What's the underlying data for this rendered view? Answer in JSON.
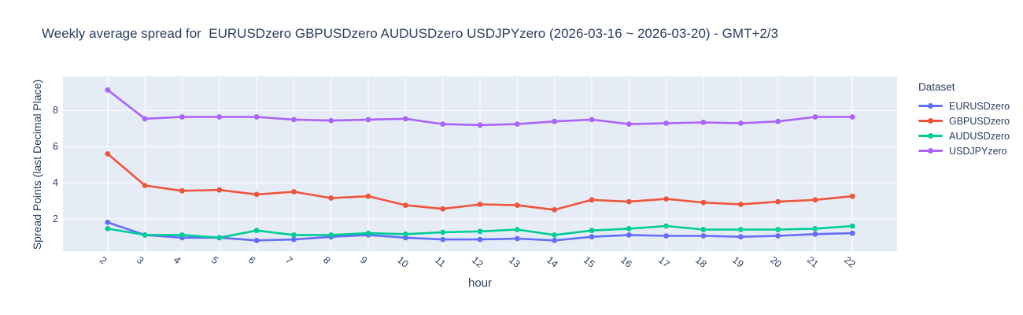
{
  "chart_data": {
    "type": "line",
    "title": "Weekly average spread for  EURUSDzero GBPUSDzero AUDUSDzero USDJPYzero (2026-03-16 ~ 2026-03-20) - GMT+2/3",
    "xlabel": "hour",
    "ylabel": "Spread Points (last Decimal Place)",
    "legend_title": "Dataset",
    "legend_position": "right",
    "grid": true,
    "x": [
      2,
      3,
      4,
      5,
      6,
      7,
      8,
      9,
      10,
      11,
      12,
      13,
      14,
      15,
      16,
      17,
      18,
      19,
      20,
      21,
      22
    ],
    "series": [
      {
        "name": "EURUSDzero",
        "color": "#636efa",
        "values": [
          1.8,
          1.1,
          0.95,
          0.95,
          0.8,
          0.85,
          1.0,
          1.1,
          0.95,
          0.85,
          0.85,
          0.9,
          0.8,
          1.0,
          1.1,
          1.05,
          1.05,
          1.0,
          1.05,
          1.15,
          1.2
        ]
      },
      {
        "name": "GBPUSDzero",
        "color": "#ef553b",
        "values": [
          5.6,
          3.85,
          3.55,
          3.6,
          3.35,
          3.5,
          3.15,
          3.25,
          2.75,
          2.55,
          2.8,
          2.75,
          2.5,
          3.05,
          2.95,
          3.1,
          2.9,
          2.8,
          2.95,
          3.05,
          3.25
        ]
      },
      {
        "name": "AUDUSDzero",
        "color": "#00cc96",
        "values": [
          1.45,
          1.1,
          1.1,
          0.95,
          1.35,
          1.1,
          1.1,
          1.2,
          1.15,
          1.25,
          1.3,
          1.4,
          1.1,
          1.35,
          1.45,
          1.6,
          1.4,
          1.4,
          1.4,
          1.45,
          1.6
        ]
      },
      {
        "name": "USDJPYzero",
        "color": "#ab63fa",
        "values": [
          9.15,
          7.55,
          7.65,
          7.65,
          7.65,
          7.5,
          7.45,
          7.5,
          7.55,
          7.25,
          7.2,
          7.25,
          7.4,
          7.5,
          7.25,
          7.3,
          7.35,
          7.3,
          7.4,
          7.65,
          7.65
        ]
      }
    ],
    "yticks": [
      2,
      4,
      6,
      8
    ],
    "xlim": [
      0.8,
      23.2
    ],
    "ylim": [
      0.2,
      9.9
    ],
    "colors": {
      "plot_bg": "#e5ecf6",
      "grid": "#ffffff",
      "text": "#2a3f5f"
    }
  }
}
